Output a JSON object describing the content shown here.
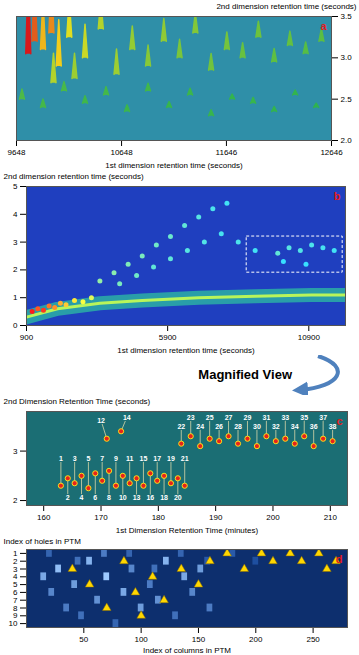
{
  "chart_data": [
    {
      "type": "spike_surface",
      "label": "a",
      "xlabel": "1st dimension retention time (seconds)",
      "ylabel": "2nd dimension retention time (seconds)",
      "xlim": [
        9648,
        12646
      ],
      "xticks": [
        9648,
        10648,
        11646,
        12646
      ],
      "ylim": [
        2,
        3.5
      ],
      "yticks": [
        {
          "value": 2,
          "label": "2.0"
        },
        2.5,
        {
          "value": 3,
          "label": "3.0"
        },
        3.5
      ],
      "x": [
        9760,
        9820,
        9900,
        9980,
        10050,
        10150,
        10300,
        10450,
        10600,
        10750,
        10900,
        11050,
        11200,
        11350,
        11500,
        11650,
        11800,
        11950,
        12100,
        12250,
        12400,
        12550,
        9700,
        9900,
        10100,
        10300,
        10500,
        10700,
        10900,
        11100,
        11300,
        11500,
        11700,
        11900,
        12100,
        12300,
        12500,
        10000,
        10200
      ],
      "y": [
        3.05,
        3.2,
        3.1,
        3.3,
        2.9,
        3.25,
        3.0,
        3.35,
        2.8,
        3.1,
        2.9,
        3.2,
        3.0,
        3.3,
        2.85,
        3.1,
        3.0,
        3.25,
        2.95,
        3.15,
        3.05,
        3.2,
        2.5,
        2.4,
        2.6,
        2.45,
        2.55,
        2.35,
        2.6,
        2.4,
        2.55,
        2.3,
        2.5,
        2.45,
        2.35,
        2.55,
        2.4,
        2.7,
        2.75
      ],
      "height": [
        95,
        80,
        60,
        70,
        55,
        45,
        40,
        35,
        30,
        28,
        25,
        27,
        22,
        24,
        20,
        21,
        18,
        19,
        16,
        17,
        14,
        15,
        12,
        10,
        11,
        9,
        10,
        8,
        9,
        7,
        8,
        7,
        6,
        7,
        6,
        6,
        5,
        35,
        30
      ]
    },
    {
      "type": "contour_map",
      "label": "b",
      "xlabel": "1st dimension retention time (seconds)",
      "ylabel": "2nd dimension retention time (seconds)",
      "xlim": [
        900,
        12200
      ],
      "xticks": [
        900,
        5900,
        10900
      ],
      "ylim": [
        0,
        5
      ],
      "yticks": [
        0,
        1,
        2,
        3,
        4,
        5
      ],
      "baseline": {
        "x": [
          900,
          2000,
          3500,
          5000,
          7000,
          9000,
          11000,
          12200
        ],
        "y": [
          0.3,
          0.6,
          0.8,
          0.9,
          1.0,
          1.05,
          1.1,
          1.1
        ]
      },
      "peaks": {
        "x": [
          1100,
          1300,
          1500,
          1700,
          1900,
          2100,
          2300,
          2600,
          2900,
          3200,
          3500,
          4000,
          4500,
          5000,
          5500,
          6000,
          6500,
          7000,
          7500,
          8000,
          4200,
          4800,
          5400,
          6000,
          6600,
          7200,
          7800,
          8400,
          9000,
          9800,
          10200,
          10600,
          11000,
          11400,
          11800,
          10000,
          10800
        ],
        "y": [
          0.5,
          0.6,
          0.55,
          0.7,
          0.65,
          0.8,
          0.75,
          0.9,
          0.85,
          1.0,
          1.6,
          1.9,
          2.2,
          2.5,
          2.9,
          3.2,
          3.6,
          3.9,
          4.2,
          4.4,
          1.5,
          1.8,
          2.1,
          2.4,
          2.7,
          3.0,
          3.3,
          3.0,
          2.7,
          2.6,
          2.8,
          2.7,
          2.9,
          2.8,
          2.7,
          2.3,
          2.2
        ],
        "intensity": [
          100,
          90,
          95,
          85,
          80,
          75,
          70,
          65,
          60,
          55,
          40,
          38,
          36,
          35,
          33,
          32,
          30,
          28,
          26,
          24,
          35,
          33,
          30,
          30,
          28,
          27,
          25,
          26,
          24,
          30,
          28,
          27,
          26,
          25,
          24,
          22,
          22
        ]
      },
      "zoom_box": {
        "x": [
          8700,
          12100
        ],
        "y": [
          1.9,
          3.2
        ]
      },
      "annotation": "Magnified View"
    },
    {
      "type": "labeled_peaks",
      "label": "c",
      "xlabel": "1st Dimension Retention Time (minutes)",
      "ylabel": "2nd Dimension Retention Time (seconds)",
      "xlim": [
        157,
        213
      ],
      "xticks": [
        160,
        170,
        180,
        190,
        200,
        210
      ],
      "ylim": [
        1.9,
        3.8
      ],
      "yticks": [
        2,
        3
      ],
      "peaks": {
        "labels": [
          "1",
          "2",
          "3",
          "4",
          "5",
          "6",
          "7",
          "8",
          "9",
          "10",
          "11",
          "13",
          "15",
          "16",
          "17",
          "18",
          "19",
          "20",
          "21",
          "12",
          "14",
          "22",
          "23",
          "24",
          "25",
          "26",
          "27",
          "28",
          "29",
          "30",
          "31",
          "32",
          "33",
          "34",
          "35",
          "36",
          "37",
          "38"
        ],
        "x": [
          163,
          164.2,
          165.4,
          166.6,
          167.8,
          169,
          170.2,
          171.4,
          172.6,
          173.8,
          175,
          176.2,
          177.4,
          178.6,
          179.8,
          181,
          182.2,
          183.4,
          184.6,
          171,
          173.5,
          184,
          185.65,
          187.3,
          188.95,
          190.6,
          192.25,
          193.9,
          195.55,
          197.2,
          198.85,
          200.5,
          202.15,
          203.8,
          205.45,
          207.1,
          208.75,
          210.4
        ],
        "y": [
          2.3,
          2.45,
          2.35,
          2.5,
          2.25,
          2.55,
          2.4,
          2.6,
          2.3,
          2.5,
          2.35,
          2.45,
          2.3,
          2.55,
          2.4,
          2.5,
          2.35,
          2.45,
          2.3,
          3.25,
          3.4,
          3.15,
          3.3,
          3.1,
          3.25,
          3.2,
          3.3,
          3.15,
          3.25,
          3.1,
          3.3,
          3.2,
          3.25,
          3.15,
          3.3,
          3.1,
          3.25,
          3.2
        ],
        "label_x": [
          163,
          164.2,
          165.4,
          166.6,
          167.8,
          169,
          170.2,
          171.4,
          172.6,
          173.8,
          175,
          176.2,
          177.4,
          178.6,
          179.8,
          181,
          182.2,
          183.4,
          184.6,
          170,
          174.5,
          184,
          185.65,
          187.3,
          188.95,
          190.6,
          192.25,
          193.9,
          195.55,
          197.2,
          198.85,
          200.5,
          202.15,
          203.8,
          205.45,
          207.1,
          208.75,
          210.4
        ],
        "label_y": [
          2.85,
          2.05,
          2.85,
          2.05,
          2.85,
          2.05,
          2.85,
          2.05,
          2.85,
          2.05,
          2.85,
          2.05,
          2.85,
          2.05,
          2.85,
          2.05,
          2.85,
          2.05,
          2.85,
          3.62,
          3.68,
          3.5,
          3.68,
          3.5,
          3.68,
          3.5,
          3.68,
          3.5,
          3.68,
          3.5,
          3.68,
          3.5,
          3.68,
          3.5,
          3.68,
          3.5,
          3.68,
          3.5
        ]
      }
    },
    {
      "type": "ptm_map",
      "label": "d",
      "xlabel": "Index of columns in PTM",
      "ylabel": "Index of holes in PTM",
      "xlim": [
        0,
        280
      ],
      "xticks": [
        50,
        100,
        150,
        200,
        250
      ],
      "ylim": [
        10.5,
        0.5
      ],
      "yticks": [
        1,
        2,
        3,
        4,
        5,
        6,
        7,
        8,
        9,
        10
      ],
      "cells": {
        "x": [
          15,
          22,
          28,
          35,
          42,
          48,
          55,
          62,
          70,
          78,
          85,
          92,
          100,
          108,
          115,
          122,
          130,
          138,
          145,
          152,
          160,
          20,
          45,
          68,
          90,
          112,
          135,
          158,
          180,
          200
        ],
        "y": [
          4,
          6,
          3,
          8,
          5,
          9,
          2,
          7,
          4,
          10,
          6,
          3,
          8,
          5,
          7,
          2,
          9,
          4,
          6,
          3,
          8,
          1,
          2,
          1,
          1,
          3,
          1,
          2,
          1,
          2
        ],
        "intensity": [
          60,
          45,
          70,
          40,
          55,
          35,
          65,
          50,
          75,
          30,
          60,
          45,
          55,
          40,
          50,
          65,
          35,
          60,
          45,
          55,
          40,
          30,
          35,
          40,
          30,
          35,
          30,
          25,
          25,
          20
        ]
      },
      "markers": {
        "x": [
          40,
          55,
          70,
          85,
          95,
          100,
          110,
          120,
          135,
          150,
          160,
          175,
          190,
          205,
          215,
          230,
          240,
          255,
          262,
          270
        ],
        "y": [
          3,
          5,
          8,
          2,
          6,
          9,
          4,
          7,
          3,
          5,
          2,
          1,
          3,
          1,
          2,
          1,
          2,
          1,
          3,
          2
        ]
      },
      "marker": "triangle"
    }
  ]
}
